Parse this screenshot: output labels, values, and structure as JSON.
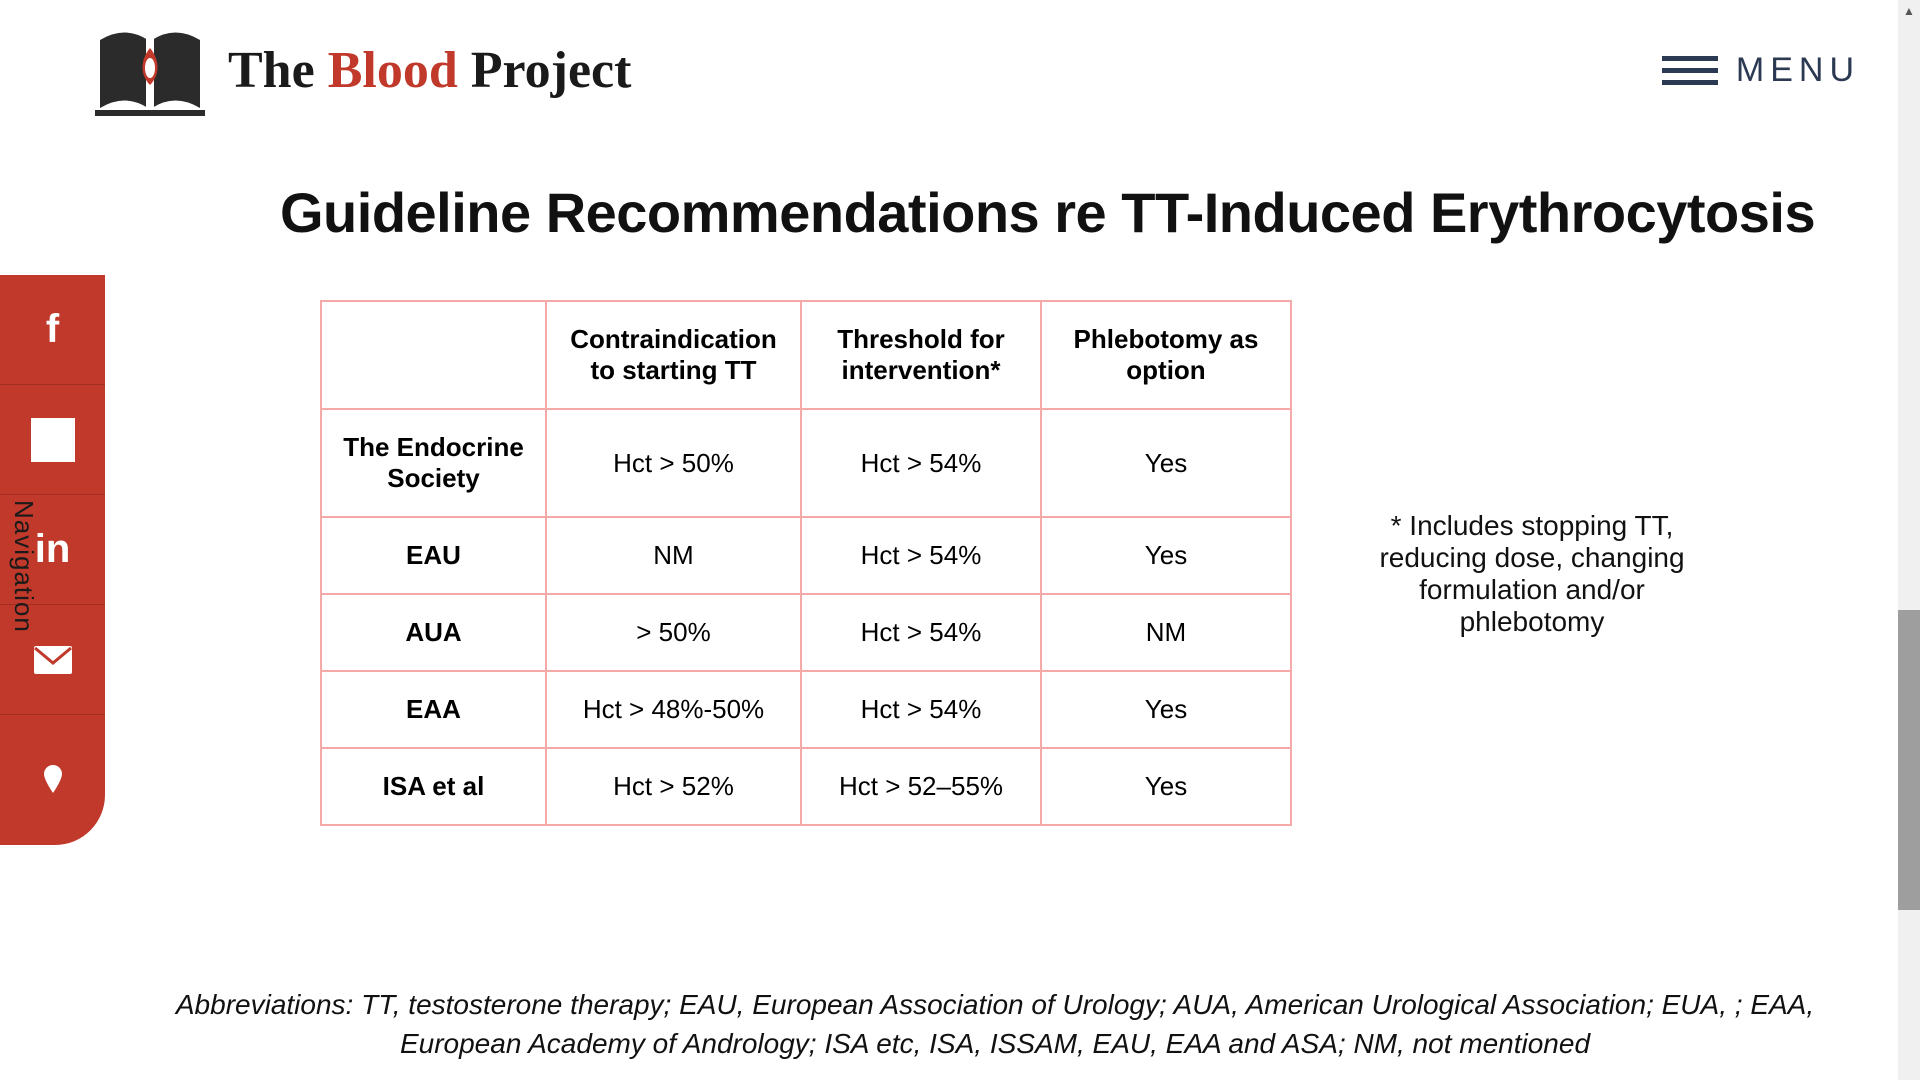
{
  "brand": {
    "part1": "The ",
    "part2": "Blood",
    "part3": " Project"
  },
  "menu": {
    "label": "MENU"
  },
  "title": "Guideline Recommendations re TT-Induced Erythrocytosis",
  "table": {
    "border_color": "#f5a9a9",
    "columns": [
      "",
      "Contraindication to starting TT",
      "Threshold for intervention*",
      "Phlebotomy as option"
    ],
    "rows": [
      {
        "label": "The Endocrine Society",
        "cells": [
          "Hct > 50%",
          "Hct > 54%",
          "Yes"
        ]
      },
      {
        "label": "EAU",
        "cells": [
          "NM",
          "Hct > 54%",
          "Yes"
        ]
      },
      {
        "label": "AUA",
        "cells": [
          "> 50%",
          "Hct > 54%",
          "NM"
        ]
      },
      {
        "label": "EAA",
        "cells": [
          "Hct > 48%-50%",
          "Hct > 54%",
          "Yes"
        ]
      },
      {
        "label": "ISA et al",
        "cells": [
          "Hct > 52%",
          "Hct > 52–55%",
          "Yes"
        ]
      }
    ]
  },
  "footnote_right": "* Includes stopping TT, reducing dose, changing formulation and/or phlebotomy",
  "abbreviations": "Abbreviations: TT, testosterone therapy; EAU, European Association of Urology; AUA, American Urological Association; EUA, ; EAA, European Academy of Andrology; ISA etc, ISA, ISSAM, EAU, EAA and ASA; NM, not mentioned",
  "social": {
    "facebook": "f",
    "linkedin": "in",
    "nav_label": "Navigation"
  },
  "colors": {
    "accent_red": "#c0392b",
    "dark_navy": "#2b3a52",
    "text": "#111111",
    "background": "#ffffff"
  }
}
